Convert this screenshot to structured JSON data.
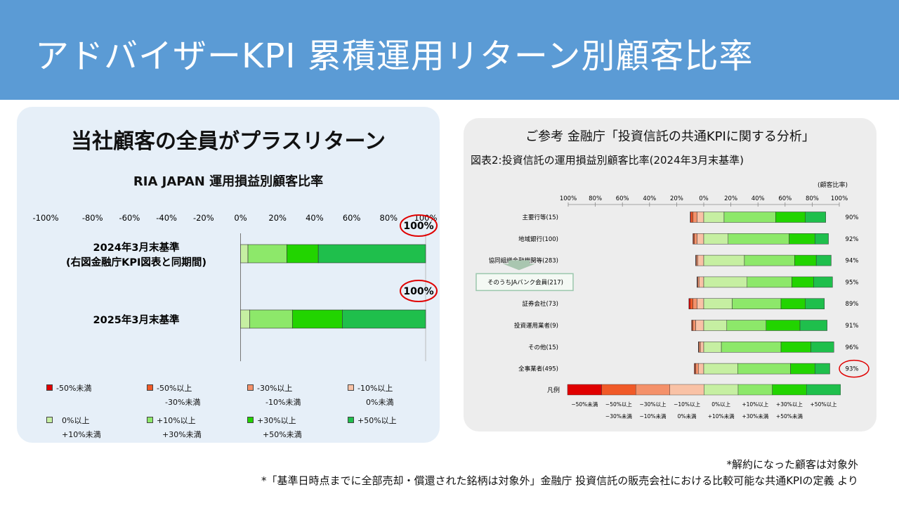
{
  "header": {
    "title": "アドバイザーKPI 累積運用リターン別顧客比率"
  },
  "left": {
    "title": "当社顧客の全員がプラスリターン",
    "subtitle": "RIA JAPAN 運用損益別顧客比率",
    "legend": [
      {
        "l1": "-50%未満",
        "l2": "",
        "color": "#e00000"
      },
      {
        "l1": "-50%以上",
        "l2": "-30%未満",
        "color": "#f05a28"
      },
      {
        "l1": "-30%以上",
        "l2": "-10%未満",
        "color": "#f4916a"
      },
      {
        "l1": "-10%以上",
        "l2": "0%未満",
        "color": "#f9c2a6"
      },
      {
        "l1": "0%以上",
        "l2": "+10%未満",
        "color": "#c6efa2"
      },
      {
        "l1": "+10%以上",
        "l2": "+30%未満",
        "color": "#8de86a"
      },
      {
        "l1": "+30%以上",
        "l2": "+50%未満",
        "color": "#22d400"
      },
      {
        "l1": "+50%以上",
        "l2": "",
        "color": "#1fbf4c"
      }
    ]
  },
  "right": {
    "title": "ご参考 金融庁「投資信託の共通KPIに関する分析」",
    "subtitle": "図表2:投資信託の運用損益別顧客比率(2024年3月末基準)",
    "unit": "(顧客比率)",
    "legend_label": "凡例",
    "legend_labels": [
      {
        "l1": "−50%未満",
        "l2": ""
      },
      {
        "l1": "−50%以上",
        "l2": "−30%未満"
      },
      {
        "l1": "−30%以上",
        "l2": "−10%未満"
      },
      {
        "l1": "−10%以上",
        "l2": "0%未満"
      },
      {
        "l1": "0%以上",
        "l2": "+10%未満"
      },
      {
        "l1": "+10%以上",
        "l2": "+30%未満"
      },
      {
        "l1": "+30%以上",
        "l2": "+50%未満"
      },
      {
        "l1": "+50%以上",
        "l2": ""
      }
    ],
    "legend_colors": [
      "#e00000",
      "#f05a28",
      "#f4916a",
      "#f9c2a6",
      "#c6efa2",
      "#8de86a",
      "#22d400",
      "#1fbf4c"
    ]
  },
  "notes": {
    "note1": "*解約になった顧客は対象外",
    "note2": "*「基準日時点までに全部売却・償還された銘柄は対象外」金融庁 投資信託の販売会社における比較可能な共通KPIの定義 より"
  },
  "chart_data": [
    {
      "type": "bar",
      "orientation": "horizontal",
      "stacked": true,
      "title": "RIA JAPAN 運用損益別顧客比率",
      "xlim": [
        -100,
        100
      ],
      "x_tick_labels": [
        "-100%",
        "-80%",
        "-60%",
        "-40%",
        "-20%",
        "0%",
        "20%",
        "40%",
        "60%",
        "80%",
        "100%"
      ],
      "categories": [
        "2024年3月末基準\n(右図金融庁KPI図表と同期間)",
        "2025年3月末基準"
      ],
      "series": [
        {
          "name": "-50%未満",
          "values": [
            0,
            0
          ]
        },
        {
          "name": "-50%以上 -30%未満",
          "values": [
            0,
            0
          ]
        },
        {
          "name": "-30%以上 -10%未満",
          "values": [
            0,
            0
          ]
        },
        {
          "name": "-10%以上 0%未満",
          "values": [
            0,
            0
          ]
        },
        {
          "name": "0%以上 +10%未満",
          "values": [
            4,
            5
          ]
        },
        {
          "name": "+10%以上 +30%未満",
          "values": [
            21,
            23
          ]
        },
        {
          "name": "+30%以上 +50%未満",
          "values": [
            17,
            27
          ]
        },
        {
          "name": "+50%以上",
          "values": [
            58,
            45
          ]
        }
      ],
      "annotations": [
        "100%",
        "100%"
      ]
    },
    {
      "type": "bar",
      "orientation": "horizontal",
      "stacked": true,
      "title": "図表2:投資信託の運用損益別顧客比率(2024年3月末基準)",
      "xlim": [
        -100,
        100
      ],
      "x_tick_labels": [
        "100%",
        "80%",
        "60%",
        "40%",
        "20%",
        "0%",
        "20%",
        "40%",
        "60%",
        "80%",
        "100%"
      ],
      "categories": [
        "主要行等(15)",
        "地域銀行(100)",
        "協同組織金融機関等(283)",
        "そのうちJAバンク会員(217)",
        "証券会社(73)",
        "投資運用業者(9)",
        "その他(15)",
        "全事業者(495)"
      ],
      "positive_ratio_labels": [
        "90%",
        "92%",
        "94%",
        "95%",
        "89%",
        "91%",
        "96%",
        "93%"
      ],
      "series": [
        {
          "name": "−50%未満",
          "values": [
            -0.5,
            -0.3,
            -0.2,
            -0.2,
            -1,
            -0.3,
            -0.2,
            -0.3
          ]
        },
        {
          "name": "−50%以上 −30%未満",
          "values": [
            -1.5,
            -0.7,
            -0.3,
            -0.3,
            -2,
            -0.7,
            -0.3,
            -0.7
          ]
        },
        {
          "name": "−30%以上 −10%未満",
          "values": [
            -3,
            -2,
            -1,
            -1,
            -3,
            -2,
            -1,
            -2
          ]
        },
        {
          "name": "−10%以上 0%未満",
          "values": [
            -5,
            -5,
            -4.5,
            -3.5,
            -5,
            -6,
            -2.5,
            -4
          ]
        },
        {
          "name": "0%以上 +10%未満",
          "values": [
            15,
            18,
            30,
            32,
            21,
            17,
            13,
            25
          ]
        },
        {
          "name": "+10%以上 +30%未満",
          "values": [
            38,
            45,
            37,
            33,
            36,
            29,
            44,
            39
          ]
        },
        {
          "name": "+30%以上 +50%未満",
          "values": [
            22,
            19,
            16,
            16,
            18,
            25,
            22,
            18
          ]
        },
        {
          "name": "+50%以上",
          "values": [
            15,
            10,
            11,
            14,
            14,
            20,
            17,
            11
          ]
        }
      ]
    }
  ]
}
